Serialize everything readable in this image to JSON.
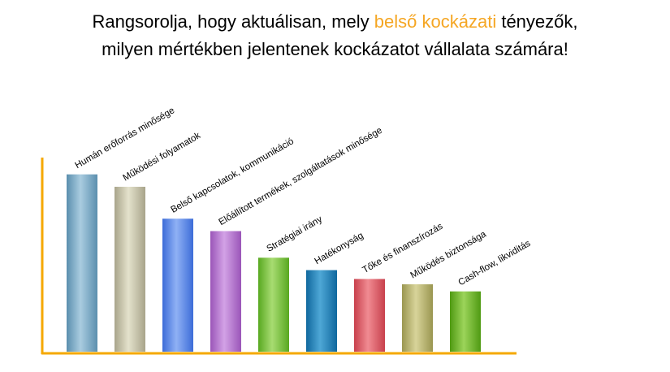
{
  "title": {
    "line1_prefix": "Rangsorolja, hogy aktuálisan, mely ",
    "line1_highlight": "belső kockázati",
    "line1_suffix": " tényezők,",
    "line2": "milyen mértékben jelentenek kockázatot vállalata számára!",
    "highlight_color": "#f5a623"
  },
  "chart_data": {
    "type": "bar",
    "categories": [
      "Humán erőforrás minősége",
      "Működési folyamatok",
      "Belső kapcsolatok, kommunikáció",
      "Előállított termékek, szolgáltatások minősége",
      "Stratégiai irány",
      "Hatékonyság",
      "Tőke és finanszírozás",
      "Működés biztonsága",
      "Cash-flow, likviditás"
    ],
    "values": [
      100,
      93,
      75,
      68,
      53,
      46,
      41,
      38,
      34
    ],
    "ylim": [
      0,
      120
    ],
    "grid": false,
    "axis_color": "#f5a800",
    "colors": [
      [
        "#5b8fae",
        "#a9cce0"
      ],
      [
        "#a8a48a",
        "#e4e2cc"
      ],
      [
        "#3c6cd8",
        "#8fb1f5"
      ],
      [
        "#9a55b8",
        "#d3a2e6"
      ],
      [
        "#58a820",
        "#a8dc72"
      ],
      [
        "#10689e",
        "#4ea7d6"
      ],
      [
        "#c8404c",
        "#f08b92"
      ],
      [
        "#9a9650",
        "#d8d49a"
      ],
      [
        "#4f9a12",
        "#9cd45a"
      ]
    ]
  }
}
